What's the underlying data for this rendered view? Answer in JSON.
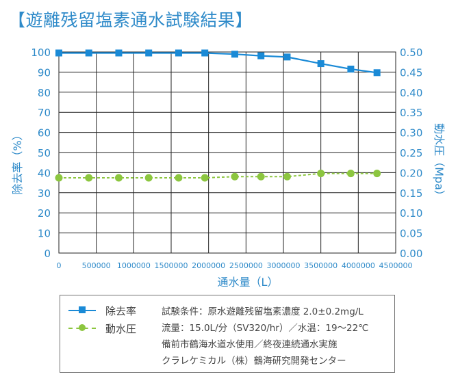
{
  "title": "【遊離残留塩素通水試験結果】",
  "chart_data": {
    "type": "line",
    "x": [
      0,
      400000,
      800000,
      1200000,
      1600000,
      1950000,
      2350000,
      2700000,
      3050000,
      3500000,
      3900000,
      4250000
    ],
    "x_ticks": [
      "0",
      "500000",
      "1000000",
      "1500000",
      "2000000",
      "2500000",
      "3000000",
      "3500000",
      "4000000",
      "4500000"
    ],
    "xlim": [
      0,
      4500000
    ],
    "xlabel": "通水量（L）",
    "ylabel_left": "除去率（%）",
    "ylabel_right": "動水圧（Mpa）",
    "ylim_left": [
      0,
      100
    ],
    "ylim_right": [
      0,
      0.5
    ],
    "y_ticks_left": [
      "0",
      "10",
      "20",
      "30",
      "40",
      "50",
      "60",
      "70",
      "80",
      "90",
      "100"
    ],
    "y_ticks_right": [
      "0.00",
      "0.05",
      "0.10",
      "0.15",
      "0.20",
      "0.25",
      "0.30",
      "0.35",
      "0.40",
      "0.45",
      "0.50"
    ],
    "grid": true,
    "legend_placement": "bottom",
    "series": [
      {
        "name": "除去率",
        "axis": "left",
        "marker": "square",
        "line_style": "solid",
        "color": "#1a8ad6",
        "values": [
          99.5,
          99.5,
          99.5,
          99.5,
          99.5,
          99.5,
          98.9,
          98.1,
          97.5,
          94.2,
          91.5,
          89.7
        ]
      },
      {
        "name": "動水圧",
        "axis": "right",
        "marker": "circle",
        "line_style": "dashed",
        "color": "#8cc63f",
        "values": [
          0.187,
          0.187,
          0.187,
          0.187,
          0.187,
          0.187,
          0.19,
          0.19,
          0.19,
          0.198,
          0.198,
          0.198
        ]
      }
    ],
    "conditions": [
      "試験条件：原水遊離残留塩素濃度 2.0±0.2mg/L",
      "流量：15.0L/分（SV320/hr）／水温：19〜22℃",
      "備前市鶴海水道水使用／終夜連続通水実施",
      "クラレケミカル（株）鶴海研究開発センター"
    ]
  }
}
